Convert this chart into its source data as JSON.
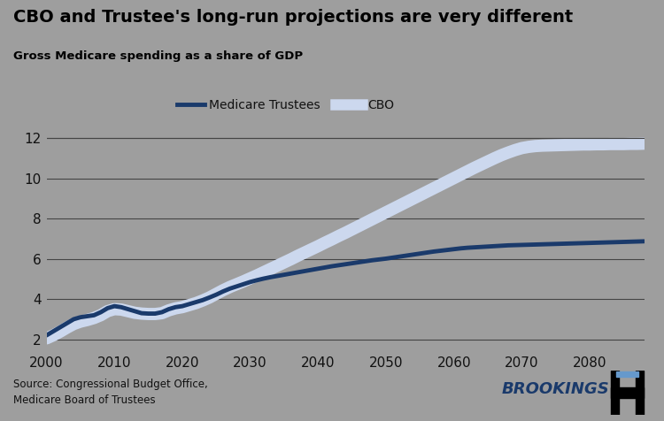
{
  "title": "CBO and Trustee's long-run projections are very different",
  "subtitle": "Gross Medicare spending as a share of GDP",
  "source_text": "Source: Congressional Budget Office,\nMedicare Board of Trustees",
  "brookings_text": "BROOKINGS",
  "background_color": "#9e9e9e",
  "plot_bg_color": "#9e9e9e",
  "title_color": "#000000",
  "subtitle_color": "#000000",
  "xmin": 2000,
  "xmax": 2088,
  "ymin": 1.5,
  "ymax": 13.0,
  "yticks": [
    2,
    4,
    6,
    8,
    10,
    12
  ],
  "xticks": [
    2000,
    2010,
    2020,
    2030,
    2040,
    2050,
    2060,
    2070,
    2080
  ],
  "trustee_color": "#1a3a6b",
  "cbo_color": "#ccd8ee",
  "trustee_label": "Medicare Trustees",
  "cbo_label": "CBO",
  "trustee_linewidth": 3.5,
  "cbo_linewidth": 10,
  "years": [
    2000,
    2001,
    2002,
    2003,
    2004,
    2005,
    2006,
    2007,
    2008,
    2009,
    2010,
    2011,
    2012,
    2013,
    2014,
    2015,
    2016,
    2017,
    2018,
    2019,
    2020,
    2021,
    2022,
    2023,
    2024,
    2025,
    2026,
    2027,
    2028,
    2029,
    2030,
    2031,
    2032,
    2033,
    2034,
    2035,
    2036,
    2037,
    2038,
    2039,
    2040,
    2041,
    2042,
    2043,
    2044,
    2045,
    2046,
    2047,
    2048,
    2049,
    2050,
    2051,
    2052,
    2053,
    2054,
    2055,
    2056,
    2057,
    2058,
    2059,
    2060,
    2061,
    2062,
    2063,
    2064,
    2065,
    2066,
    2067,
    2068,
    2069,
    2070,
    2071,
    2072,
    2073,
    2074,
    2075,
    2076,
    2077,
    2078,
    2079,
    2080,
    2081,
    2082,
    2083,
    2084,
    2085,
    2086,
    2087,
    2088
  ],
  "trustee_values": [
    2.2,
    2.4,
    2.6,
    2.8,
    3.0,
    3.1,
    3.15,
    3.2,
    3.35,
    3.55,
    3.65,
    3.6,
    3.5,
    3.4,
    3.3,
    3.28,
    3.28,
    3.35,
    3.5,
    3.6,
    3.65,
    3.75,
    3.85,
    3.95,
    4.08,
    4.22,
    4.38,
    4.52,
    4.63,
    4.74,
    4.85,
    4.94,
    5.02,
    5.09,
    5.15,
    5.21,
    5.27,
    5.33,
    5.39,
    5.45,
    5.51,
    5.57,
    5.63,
    5.68,
    5.73,
    5.78,
    5.83,
    5.88,
    5.93,
    5.97,
    6.01,
    6.06,
    6.11,
    6.16,
    6.21,
    6.26,
    6.31,
    6.36,
    6.4,
    6.44,
    6.48,
    6.52,
    6.55,
    6.57,
    6.59,
    6.61,
    6.63,
    6.65,
    6.67,
    6.68,
    6.69,
    6.7,
    6.71,
    6.72,
    6.73,
    6.74,
    6.75,
    6.76,
    6.77,
    6.78,
    6.79,
    6.8,
    6.81,
    6.82,
    6.83,
    6.84,
    6.85,
    6.86,
    6.87
  ],
  "cbo_values": [
    2.05,
    2.2,
    2.38,
    2.58,
    2.76,
    2.88,
    2.96,
    3.06,
    3.2,
    3.4,
    3.5,
    3.48,
    3.4,
    3.32,
    3.28,
    3.26,
    3.26,
    3.3,
    3.44,
    3.54,
    3.6,
    3.7,
    3.8,
    3.93,
    4.08,
    4.26,
    4.44,
    4.6,
    4.74,
    4.88,
    5.03,
    5.18,
    5.34,
    5.5,
    5.66,
    5.82,
    5.98,
    6.15,
    6.31,
    6.47,
    6.63,
    6.8,
    6.96,
    7.13,
    7.29,
    7.46,
    7.63,
    7.8,
    7.97,
    8.14,
    8.31,
    8.48,
    8.65,
    8.82,
    8.99,
    9.16,
    9.33,
    9.5,
    9.67,
    9.84,
    10.01,
    10.18,
    10.35,
    10.52,
    10.68,
    10.84,
    11.0,
    11.15,
    11.28,
    11.4,
    11.5,
    11.56,
    11.6,
    11.62,
    11.63,
    11.64,
    11.65,
    11.66,
    11.67,
    11.68,
    11.68,
    11.69,
    11.69,
    11.7,
    11.7,
    11.7,
    11.71,
    11.71,
    11.72
  ]
}
